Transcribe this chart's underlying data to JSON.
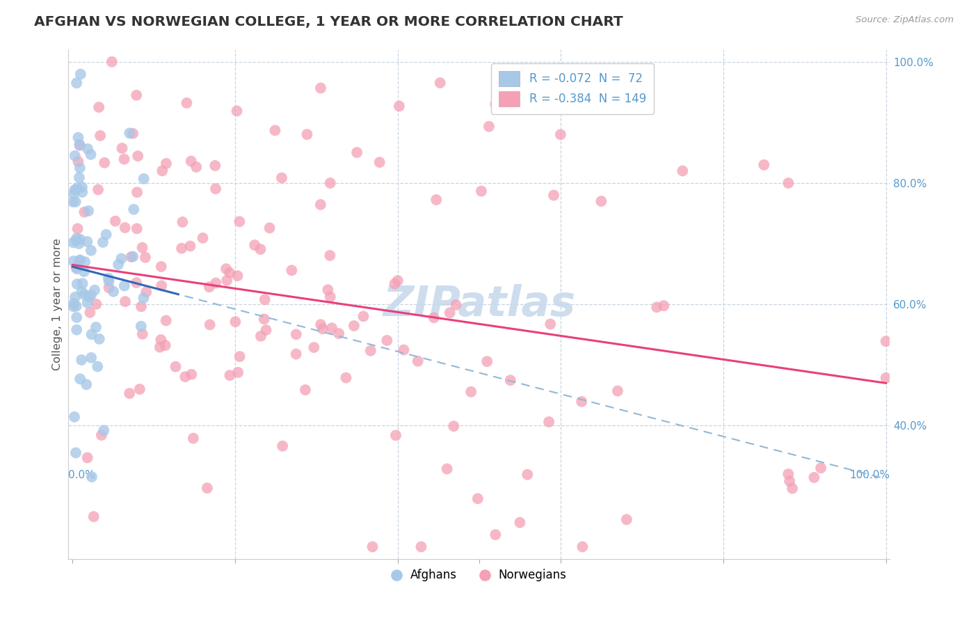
{
  "title": "AFGHAN VS NORWEGIAN COLLEGE, 1 YEAR OR MORE CORRELATION CHART",
  "source": "Source: ZipAtlas.com",
  "ylabel": "College, 1 year or more",
  "legend_label1": "R = -0.072  N =  72",
  "legend_label2": "R = -0.384  N = 149",
  "legend_label_afghans": "Afghans",
  "legend_label_norwegians": "Norwegians",
  "afghan_color": "#a8c8e8",
  "norwegian_color": "#f4a0b5",
  "afghan_line_color": "#3366bb",
  "norwegian_line_color": "#e8407a",
  "dashed_line_color": "#90b8d8",
  "watermark_color": "#c5d8ec",
  "background_color": "#ffffff",
  "grid_color": "#c8d4e0",
  "axis_label_color": "#5599cc",
  "title_color": "#333333",
  "r_afghan": -0.072,
  "n_afghan": 72,
  "r_norwegian": -0.384,
  "n_norwegian": 149,
  "seed": 42
}
